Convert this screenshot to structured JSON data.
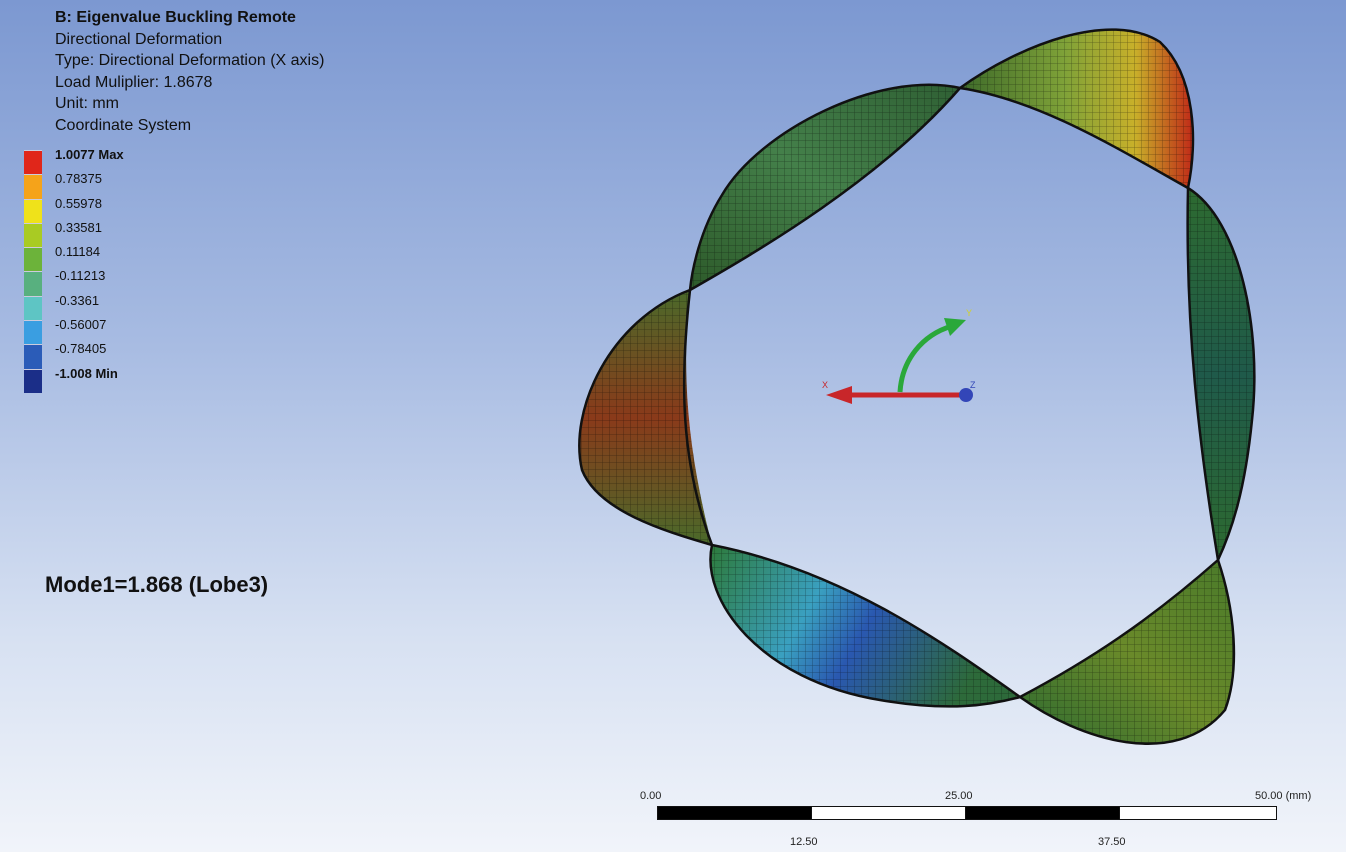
{
  "info": {
    "title": "B: Eigenvalue Buckling Remote",
    "line1": "Directional Deformation",
    "line2": "Type: Directional Deformation (X axis)",
    "line3": "Load Muliplier: 1.8678",
    "line4": "Unit: mm",
    "line5": "Coordinate System"
  },
  "legend": [
    {
      "label": "1.0077 Max",
      "color": "#e0261a",
      "bold": true
    },
    {
      "label": "0.78375",
      "color": "#f5a31a",
      "bold": false
    },
    {
      "label": "0.55978",
      "color": "#efe21a",
      "bold": false
    },
    {
      "label": "0.33581",
      "color": "#a9cb23",
      "bold": false
    },
    {
      "label": "0.11184",
      "color": "#6cb33a",
      "bold": false
    },
    {
      "label": "-0.11213",
      "color": "#58b07f",
      "bold": false
    },
    {
      "label": "-0.3361",
      "color": "#5ec5c4",
      "bold": false
    },
    {
      "label": "-0.56007",
      "color": "#3a9ee1",
      "bold": false
    },
    {
      "label": "-0.78405",
      "color": "#2b5cb8",
      "bold": false
    },
    {
      "label": "-1.008 Min",
      "color": "#1b2e88",
      "bold": true
    }
  ],
  "mode_label": "Mode1=1.868 (Lobe3)",
  "triad": {
    "x_label": "X",
    "y_label": "Y",
    "z_label": "Z"
  },
  "scale_bar": {
    "top_ticks": [
      "0.00",
      "25.00",
      "50.00 (mm)"
    ],
    "bottom_ticks": [
      "12.50",
      "37.50"
    ]
  }
}
